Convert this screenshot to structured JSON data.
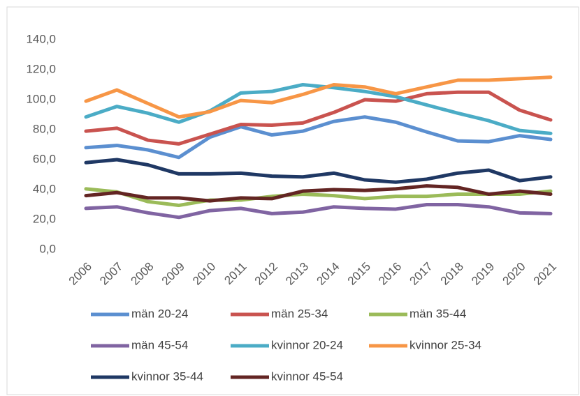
{
  "chart_data": {
    "type": "line",
    "categories": [
      "2006",
      "2007",
      "2008",
      "2009",
      "2010",
      "2011",
      "2012",
      "2013",
      "2014",
      "2015",
      "2016",
      "2017",
      "2018",
      "2019",
      "2020",
      "2021"
    ],
    "ylim": [
      0,
      140
    ],
    "yticks": [
      {
        "value": 0,
        "label": "0,0"
      },
      {
        "value": 20,
        "label": "20,0"
      },
      {
        "value": 40,
        "label": "40,0"
      },
      {
        "value": 60,
        "label": "60,0"
      },
      {
        "value": 80,
        "label": "80,0"
      },
      {
        "value": 100,
        "label": "100,0"
      },
      {
        "value": 120,
        "label": "120,0"
      },
      {
        "value": 140,
        "label": "140,0"
      }
    ],
    "grid": false,
    "legend": "bottom",
    "series": [
      {
        "name": "män 20-24",
        "color": "#5b8fd0",
        "values": [
          68,
          69.5,
          66.5,
          61.5,
          75,
          82,
          76.5,
          79,
          85.5,
          88.5,
          85,
          78.5,
          72.5,
          72,
          76,
          73.5
        ]
      },
      {
        "name": "män 25-34",
        "color": "#c9534f",
        "values": [
          79,
          81,
          73,
          70.5,
          77,
          83.5,
          83,
          84.5,
          91.5,
          100,
          99,
          104,
          105,
          105,
          93,
          86.5
        ]
      },
      {
        "name": "män 35-44",
        "color": "#9bbb59",
        "values": [
          40.5,
          38.5,
          32,
          29.5,
          33,
          33,
          35.5,
          37,
          36,
          34,
          35.5,
          35.5,
          37,
          37,
          37,
          39
        ]
      },
      {
        "name": "män 45-54",
        "color": "#8064a2",
        "values": [
          27.5,
          28.5,
          24.5,
          21.5,
          26,
          27.5,
          24,
          25,
          28.5,
          27.5,
          27,
          30,
          30,
          28.5,
          24.5,
          24
        ]
      },
      {
        "name": "kvinnor 20-24",
        "color": "#4bacc6",
        "values": [
          88.5,
          95.5,
          91,
          85,
          92.5,
          104.5,
          105.5,
          110,
          108,
          105.5,
          102,
          96.5,
          91,
          86,
          79.5,
          77.5
        ]
      },
      {
        "name": "kvinnor 25-34",
        "color": "#f79646",
        "values": [
          99,
          106.5,
          97.5,
          88.5,
          92,
          99.5,
          98,
          103.5,
          110,
          108.5,
          104,
          108.5,
          113,
          113,
          114,
          115
        ]
      },
      {
        "name": "kvinnor 35-44",
        "color": "#1f3864",
        "values": [
          58,
          60,
          56.5,
          50.5,
          50.5,
          51,
          49,
          48.5,
          51,
          46.5,
          45,
          47,
          51,
          53,
          46,
          48.5
        ]
      },
      {
        "name": "kvinnor 45-54",
        "color": "#632523",
        "values": [
          36,
          38,
          34.5,
          34.5,
          32.5,
          34.5,
          34,
          39,
          40,
          39.5,
          40.5,
          42.5,
          41.5,
          37,
          39,
          37
        ]
      }
    ]
  }
}
